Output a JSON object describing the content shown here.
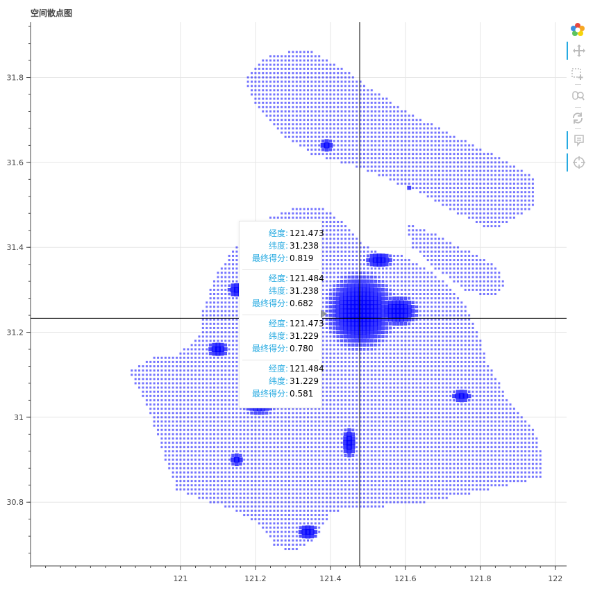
{
  "chart_data": {
    "type": "scatter",
    "title": "空间散点图",
    "x_ticks": [
      "121",
      "121.2",
      "121.4",
      "121.6",
      "121.8",
      "122"
    ],
    "y_ticks": [
      "30.8",
      "31",
      "31.2",
      "31.4",
      "31.6",
      "31.8"
    ],
    "xlim": [
      120.6,
      122.03
    ],
    "ylim": [
      30.65,
      31.93
    ],
    "grid": true,
    "crosshair": {
      "x": 121.478,
      "y": 31.233
    },
    "series_color": "#0000ff",
    "point_count_note": "dense grid of square markers (~0.01 deg spacing) covering the Shanghai region",
    "hover_points": [
      {
        "lon": 121.473,
        "lat": 31.238,
        "score": 0.819
      },
      {
        "lon": 121.484,
        "lat": 31.238,
        "score": 0.682
      },
      {
        "lon": 121.473,
        "lat": 31.229,
        "score": 0.78
      },
      {
        "lon": 121.484,
        "lat": 31.229,
        "score": 0.581
      }
    ],
    "regions": [
      {
        "name": "main",
        "outline": [
          [
            120.86,
            31.11
          ],
          [
            120.92,
            31.14
          ],
          [
            120.99,
            31.15
          ],
          [
            121.05,
            31.19
          ],
          [
            121.06,
            31.25
          ],
          [
            121.08,
            31.3
          ],
          [
            121.1,
            31.34
          ],
          [
            121.13,
            31.38
          ],
          [
            121.16,
            31.42
          ],
          [
            121.2,
            31.46
          ],
          [
            121.26,
            31.48
          ],
          [
            121.32,
            31.5
          ],
          [
            121.39,
            31.49
          ],
          [
            121.45,
            31.45
          ],
          [
            121.49,
            31.41
          ],
          [
            121.53,
            31.39
          ],
          [
            121.6,
            31.38
          ],
          [
            121.66,
            31.35
          ],
          [
            121.72,
            31.31
          ],
          [
            121.76,
            31.27
          ],
          [
            121.79,
            31.21
          ],
          [
            121.82,
            31.13
          ],
          [
            121.87,
            31.05
          ],
          [
            121.94,
            30.98
          ],
          [
            121.97,
            30.9
          ],
          [
            121.97,
            30.86
          ],
          [
            121.88,
            30.84
          ],
          [
            121.78,
            30.82
          ],
          [
            121.66,
            30.8
          ],
          [
            121.55,
            30.79
          ],
          [
            121.46,
            30.79
          ],
          [
            121.4,
            30.77
          ],
          [
            121.36,
            30.71
          ],
          [
            121.3,
            30.68
          ],
          [
            121.25,
            30.7
          ],
          [
            121.21,
            30.75
          ],
          [
            121.15,
            30.78
          ],
          [
            121.08,
            30.8
          ],
          [
            120.99,
            30.83
          ],
          [
            120.96,
            30.9
          ],
          [
            120.93,
            30.98
          ],
          [
            120.9,
            31.05
          ],
          [
            120.86,
            31.11
          ]
        ]
      },
      {
        "name": "chongming",
        "outline": [
          [
            121.17,
            31.8
          ],
          [
            121.23,
            31.85
          ],
          [
            121.33,
            31.87
          ],
          [
            121.42,
            31.83
          ],
          [
            121.5,
            31.78
          ],
          [
            121.57,
            31.74
          ],
          [
            121.65,
            31.7
          ],
          [
            121.74,
            31.66
          ],
          [
            121.81,
            31.63
          ],
          [
            121.88,
            31.6
          ],
          [
            121.94,
            31.57
          ],
          [
            121.95,
            31.5
          ],
          [
            121.9,
            31.47
          ],
          [
            121.83,
            31.44
          ],
          [
            121.74,
            31.48
          ],
          [
            121.66,
            31.52
          ],
          [
            121.58,
            31.55
          ],
          [
            121.5,
            31.58
          ],
          [
            121.43,
            31.6
          ],
          [
            121.35,
            31.62
          ],
          [
            121.28,
            31.66
          ],
          [
            121.2,
            31.74
          ],
          [
            121.17,
            31.8
          ]
        ]
      },
      {
        "name": "changxing",
        "outline": [
          [
            121.6,
            31.46
          ],
          [
            121.66,
            31.44
          ],
          [
            121.75,
            31.4
          ],
          [
            121.84,
            31.36
          ],
          [
            121.87,
            31.31
          ],
          [
            121.83,
            31.28
          ],
          [
            121.76,
            31.3
          ],
          [
            121.68,
            31.35
          ],
          [
            121.62,
            31.4
          ],
          [
            121.6,
            31.46
          ]
        ]
      }
    ],
    "hotspots": [
      {
        "x": 121.48,
        "y": 31.25,
        "rx": 0.1,
        "ry": 0.1
      },
      {
        "x": 121.58,
        "y": 31.25,
        "rx": 0.06,
        "ry": 0.04
      },
      {
        "x": 121.53,
        "y": 31.37,
        "rx": 0.04,
        "ry": 0.02
      },
      {
        "x": 121.23,
        "y": 31.39,
        "rx": 0.03,
        "ry": 0.03
      },
      {
        "x": 121.15,
        "y": 31.3,
        "rx": 0.025,
        "ry": 0.02
      },
      {
        "x": 121.1,
        "y": 31.16,
        "rx": 0.03,
        "ry": 0.02
      },
      {
        "x": 121.21,
        "y": 31.04,
        "rx": 0.05,
        "ry": 0.04
      },
      {
        "x": 121.45,
        "y": 30.94,
        "rx": 0.02,
        "ry": 0.04
      },
      {
        "x": 121.75,
        "y": 31.05,
        "rx": 0.03,
        "ry": 0.015
      },
      {
        "x": 121.15,
        "y": 30.9,
        "rx": 0.02,
        "ry": 0.015
      },
      {
        "x": 121.39,
        "y": 31.64,
        "rx": 0.02,
        "ry": 0.015
      },
      {
        "x": 121.6,
        "y": 31.54,
        "rx": 0.015,
        "ry": 0.01
      },
      {
        "x": 121.34,
        "y": 30.73,
        "rx": 0.03,
        "ry": 0.02
      }
    ]
  },
  "tooltip": {
    "entries": [
      {
        "lon_label": "经度:",
        "lon": "121.473",
        "lat_label": "纬度:",
        "lat": "31.238",
        "score_label": "最终得分:",
        "score": "0.819"
      },
      {
        "lon_label": "经度:",
        "lon": "121.484",
        "lat_label": "纬度:",
        "lat": "31.238",
        "score_label": "最终得分:",
        "score": "0.682"
      },
      {
        "lon_label": "经度:",
        "lon": "121.473",
        "lat_label": "纬度:",
        "lat": "31.229",
        "score_label": "最终得分:",
        "score": "0.780"
      },
      {
        "lon_label": "经度:",
        "lon": "121.484",
        "lat_label": "纬度:",
        "lat": "31.229",
        "score_label": "最终得分:",
        "score": "0.581"
      }
    ]
  },
  "toolbar": {
    "tools": [
      {
        "name": "bokeh-logo-icon",
        "active": false
      },
      {
        "name": "pan-tool-icon",
        "active": true
      },
      {
        "name": "box-zoom-tool-icon",
        "active": false
      },
      {
        "name": "wheel-zoom-tool-icon",
        "active": false
      },
      {
        "name": "reset-tool-icon",
        "active": false
      },
      {
        "name": "hover-tool-icon",
        "active": true
      },
      {
        "name": "crosshair-tool-icon",
        "active": false
      }
    ]
  }
}
